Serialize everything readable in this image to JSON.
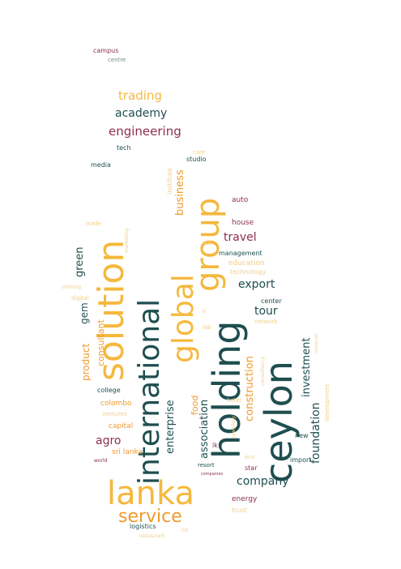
{
  "palette": {
    "dark_teal": "#1f4e4f",
    "gold": "#f5b83d",
    "orange": "#f09a2c",
    "maroon": "#8e2f4f",
    "pale_gold": "#f3cf86",
    "gray_teal": "#6b8d8a"
  },
  "words": [
    {
      "text": "campus",
      "color": "maroon"
    },
    {
      "text": "centre",
      "color": "gray_teal"
    },
    {
      "text": "trading",
      "color": "gold"
    },
    {
      "text": "academy",
      "color": "dark_teal"
    },
    {
      "text": "engineering",
      "color": "maroon"
    },
    {
      "text": "tech",
      "color": "dark_teal"
    },
    {
      "text": "care",
      "color": "pale_gold"
    },
    {
      "text": "studio",
      "color": "dark_teal"
    },
    {
      "text": "media",
      "color": "dark_teal"
    },
    {
      "text": "institute",
      "color": "pale_gold"
    },
    {
      "text": "solution",
      "color": "gold"
    },
    {
      "text": "international",
      "color": "dark_teal"
    },
    {
      "text": "global",
      "color": "gold"
    },
    {
      "text": "group",
      "color": "gold"
    },
    {
      "text": "business",
      "color": "orange"
    },
    {
      "text": "auto",
      "color": "maroon"
    },
    {
      "text": "marketing",
      "color": "pale_gold"
    },
    {
      "text": "trade",
      "color": "pale_gold"
    },
    {
      "text": "house",
      "color": "maroon"
    },
    {
      "text": "travel",
      "color": "maroon"
    },
    {
      "text": "hub",
      "color": "pale_gold"
    },
    {
      "text": "management",
      "color": "dark_teal"
    },
    {
      "text": "green",
      "color": "dark_teal"
    },
    {
      "text": "education",
      "color": "pale_gold"
    },
    {
      "text": "technology",
      "color": "pale_gold"
    },
    {
      "text": "clothing",
      "color": "pale_gold"
    },
    {
      "text": "digital",
      "color": "pale_gold"
    },
    {
      "text": "export",
      "color": "dark_teal"
    },
    {
      "text": "gem",
      "color": "dark_teal"
    },
    {
      "text": "consultant",
      "color": "orange"
    },
    {
      "text": "center",
      "color": "dark_teal"
    },
    {
      "text": "holding",
      "color": "dark_teal"
    },
    {
      "text": "tour",
      "color": "dark_teal"
    },
    {
      "text": "network",
      "color": "pale_gold"
    },
    {
      "text": "n",
      "color": "pale_gold"
    },
    {
      "text": "lab",
      "color": "pale_gold"
    },
    {
      "text": "ceylon",
      "color": "dark_teal"
    },
    {
      "text": "product",
      "color": "orange"
    },
    {
      "text": "construction",
      "color": "orange"
    },
    {
      "text": "investment",
      "color": "dark_teal"
    },
    {
      "text": "consultancy",
      "color": "pale_gold"
    },
    {
      "text": "industries",
      "color": "pale_gold"
    },
    {
      "text": "development",
      "color": "pale_gold"
    },
    {
      "text": "college",
      "color": "dark_teal"
    },
    {
      "text": "enterprise",
      "color": "dark_teal"
    },
    {
      "text": "association",
      "color": "dark_teal"
    },
    {
      "text": "foundation",
      "color": "dark_teal"
    },
    {
      "text": "food",
      "color": "orange"
    },
    {
      "text": "colombo",
      "color": "orange"
    },
    {
      "text": "hotel",
      "color": "pale_gold"
    },
    {
      "text": "jewellery",
      "color": "pale_gold"
    },
    {
      "text": "ventures",
      "color": "pale_gold"
    },
    {
      "text": "capital",
      "color": "orange"
    },
    {
      "text": "agro",
      "color": "maroon"
    },
    {
      "text": "new",
      "color": "dark_teal"
    },
    {
      "text": "sri lanka",
      "color": "orange"
    },
    {
      "text": "lk",
      "color": "maroon"
    },
    {
      "text": "world",
      "color": "maroon"
    },
    {
      "text": "resort",
      "color": "dark_teal"
    },
    {
      "text": "eco",
      "color": "pale_gold"
    },
    {
      "text": "import",
      "color": "dark_teal"
    },
    {
      "text": "star",
      "color": "maroon"
    },
    {
      "text": "companies",
      "color": "maroon"
    },
    {
      "text": "lanka",
      "color": "gold"
    },
    {
      "text": "company",
      "color": "dark_teal"
    },
    {
      "text": "energy",
      "color": "maroon"
    },
    {
      "text": "service",
      "color": "orange"
    },
    {
      "text": "trust",
      "color": "pale_gold"
    },
    {
      "text": "logistics",
      "color": "dark_teal"
    },
    {
      "text": "co",
      "color": "pale_gold"
    },
    {
      "text": "restaurant",
      "color": "pale_gold"
    }
  ]
}
